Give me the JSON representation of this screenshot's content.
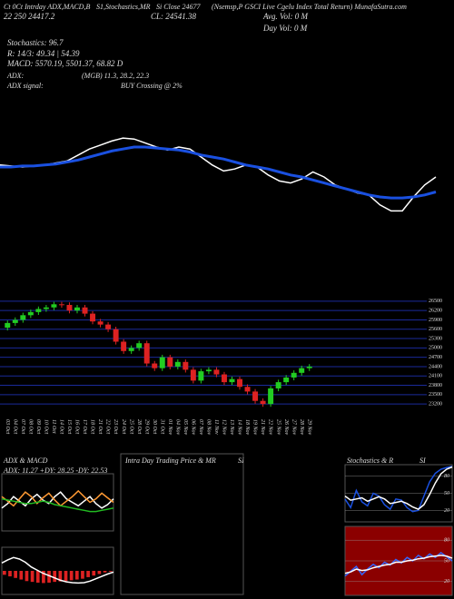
{
  "header": {
    "l1a": "Ct 0Ct Intrday ADX,MACD,B",
    "l1b": "S1,Stochastics,MR",
    "l1c": "Si Close 24677",
    "l1d": "(Nsemsp,P GSCI Live Cgelu Index Total Return) MunafaSutra.com",
    "l2a": "22 250 24417.2",
    "l2b": "CL: 24541.38",
    "l2c": "Avg. Vol: 0 M",
    "l2d": "Day Vol: 0 M",
    "stoch": "Stochastics: 96.7",
    "r": "R: 14/3: 49.34 | 54.39",
    "macd": "MACD: 5570.19, 5501.37, 68.82 D",
    "adx": "ADX:",
    "adx_vals": "(MGB) 11.3, 28.2, 22.3",
    "adx_signal": "ADX signal:",
    "signal": "BUY Crossing @ 2%",
    "p_adx": "ADX & MACD",
    "p_adx_sub": "ADX: 11.27 +DY: 28.25 -DY: 22.53",
    "p_intra": "Intra Day Trading Price & MR",
    "p_intra_si": "SI",
    "p_stoch": "Stochastics & R",
    "p_stoch_si": "SI"
  },
  "chart_data": [
    {
      "type": "line",
      "ylim": [
        0,
        100
      ],
      "series": [
        {
          "name": "Price",
          "color": "#ffffff",
          "values": [
            62,
            61,
            60,
            61,
            62,
            64,
            66,
            72,
            78,
            82,
            86,
            89,
            88,
            84,
            80,
            77,
            80,
            78,
            70,
            62,
            56,
            58,
            62,
            60,
            52,
            46,
            44,
            48,
            55,
            50,
            42,
            38,
            34,
            32,
            22,
            16,
            16,
            30,
            42,
            50
          ]
        },
        {
          "name": "Average",
          "color": "#1a50e0",
          "values": [
            60,
            60,
            61,
            61,
            62,
            63,
            65,
            67,
            70,
            73,
            76,
            78,
            80,
            80,
            79,
            78,
            77,
            75,
            72,
            70,
            68,
            65,
            62,
            60,
            58,
            55,
            52,
            50,
            47,
            44,
            41,
            38,
            35,
            32,
            30,
            29,
            29,
            30,
            32,
            35
          ]
        }
      ]
    },
    {
      "type": "candlestick",
      "ylim": [
        23000,
        26700
      ],
      "yticks": [
        23200,
        23500,
        23800,
        24100,
        24400,
        24700,
        25000,
        25300,
        25600,
        25900,
        26200,
        26500
      ],
      "up_color": "#22cc22",
      "down_color": "#dd2222",
      "grid_color": "#1a2a9a",
      "categories": [
        "03 Oct",
        "04 Oct",
        "07 Oct",
        "08 Oct",
        "09 Oct",
        "10 Oct",
        "11 Oct",
        "14 Oct",
        "15 Oct",
        "16 Oct",
        "17 Oct",
        "18 Oct",
        "21 Oct",
        "22 Oct",
        "23 Oct",
        "24 Oct",
        "25 Oct",
        "28 Oct",
        "29 Oct",
        "30 Oct",
        "31 Oct",
        "01 Nov",
        "04 Nov",
        "05 Nov",
        "06 Nov",
        "07 Nov",
        "08 Nov",
        "11 Nov",
        "12 Nov",
        "13 Nov",
        "14 Nov",
        "18 Nov",
        "19 Nov",
        "21 Nov",
        "22 Nov",
        "25 Nov",
        "26 Nov",
        "27 Nov",
        "28 Nov",
        "29 Nov"
      ],
      "open": [
        25650,
        25800,
        25900,
        26050,
        26150,
        26250,
        26300,
        26400,
        26380,
        26200,
        26300,
        26100,
        25850,
        25750,
        25600,
        25200,
        24900,
        25000,
        25150,
        24500,
        24350,
        24700,
        24400,
        24550,
        24300,
        23950,
        24250,
        24300,
        24150,
        23900,
        24000,
        23750,
        23600,
        23300,
        23200,
        23700,
        23900,
        24050,
        24200,
        24350
      ],
      "high": [
        25880,
        25980,
        26130,
        26230,
        26330,
        26380,
        26480,
        26480,
        26460,
        26380,
        26380,
        26180,
        25930,
        25830,
        25680,
        25280,
        25080,
        25230,
        25230,
        24580,
        24780,
        24780,
        24630,
        24630,
        24380,
        24330,
        24380,
        24380,
        24230,
        24080,
        24080,
        23830,
        23680,
        23380,
        23780,
        23980,
        24130,
        24280,
        24430,
        24480
      ],
      "low": [
        25560,
        25710,
        25810,
        25960,
        26060,
        26160,
        26210,
        26290,
        26110,
        26110,
        26010,
        25760,
        25660,
        25510,
        25110,
        24810,
        24810,
        24910,
        24410,
        24260,
        24260,
        24310,
        24310,
        24210,
        23860,
        23860,
        24160,
        24060,
        23810,
        23810,
        23660,
        23510,
        23210,
        23110,
        23110,
        23610,
        23810,
        23960,
        24110,
        24260
      ],
      "close": [
        25800,
        25900,
        26050,
        26150,
        26250,
        26300,
        26400,
        26380,
        26200,
        26300,
        26100,
        25850,
        25750,
        25600,
        25200,
        24900,
        25000,
        25150,
        24500,
        24350,
        24700,
        24400,
        24550,
        24300,
        23950,
        24250,
        24300,
        24150,
        23900,
        24000,
        23750,
        23600,
        23300,
        23200,
        23700,
        23900,
        24050,
        24200,
        24350,
        24400
      ]
    },
    {
      "type": "line",
      "ylim": [
        0,
        50
      ],
      "series": [
        {
          "name": "+DY",
          "color": "#ffffff",
          "values": [
            20,
            24,
            30,
            26,
            22,
            28,
            32,
            27,
            24,
            30,
            34,
            28,
            25,
            22,
            26,
            30,
            24,
            20,
            23,
            28
          ]
        },
        {
          "name": "-DY",
          "color": "#ff9933",
          "values": [
            30,
            26,
            22,
            28,
            34,
            30,
            24,
            29,
            33,
            27,
            22,
            26,
            30,
            35,
            30,
            25,
            28,
            33,
            29,
            25
          ]
        },
        {
          "name": "ADX",
          "color": "#22bb22",
          "values": [
            28,
            27,
            26,
            25,
            24,
            24,
            25,
            26,
            25,
            23,
            22,
            21,
            20,
            19,
            18,
            17,
            17,
            18,
            19,
            20
          ]
        }
      ]
    },
    {
      "type": "bar",
      "ylim": [
        -60,
        60
      ],
      "color": "#dd2222",
      "values": [
        -10,
        -14,
        -18,
        -22,
        -26,
        -28,
        -30,
        -31,
        -30,
        -28,
        -27,
        -26,
        -24,
        -22,
        -20,
        -16,
        -12,
        -8,
        -4,
        -2
      ],
      "series": [
        {
          "name": "MACD",
          "color": "#ffffff",
          "values": [
            20,
            28,
            34,
            30,
            22,
            10,
            2,
            -6,
            -12,
            -18,
            -24,
            -28,
            -30,
            -31,
            -30,
            -26,
            -20,
            -14,
            -8,
            -3
          ]
        }
      ]
    },
    {
      "type": "line",
      "ylim": [
        0,
        100
      ],
      "yticks": [
        20,
        50,
        80
      ],
      "bg": "#000000",
      "series": [
        {
          "name": "%K",
          "color": "#1a50e0",
          "values": [
            40,
            25,
            55,
            35,
            28,
            50,
            45,
            30,
            22,
            40,
            38,
            25,
            18,
            20,
            45,
            70,
            85,
            92,
            95,
            97
          ]
        },
        {
          "name": "%D",
          "color": "#ffffff",
          "values": [
            45,
            38,
            40,
            42,
            36,
            40,
            44,
            40,
            32,
            34,
            36,
            32,
            26,
            22,
            30,
            48,
            68,
            84,
            92,
            96
          ]
        }
      ]
    },
    {
      "type": "line",
      "ylim": [
        0,
        100
      ],
      "yticks": [
        20,
        50,
        80
      ],
      "bg": "#8b0000",
      "series": [
        {
          "name": "R",
          "color": "#3366ff",
          "values": [
            28,
            35,
            42,
            30,
            38,
            45,
            40,
            48,
            44,
            52,
            47,
            55,
            50,
            58,
            53,
            60,
            55,
            62,
            56,
            50
          ]
        },
        {
          "name": "Signal",
          "color": "#ffffff",
          "values": [
            32,
            34,
            38,
            36,
            37,
            40,
            42,
            44,
            45,
            48,
            48,
            50,
            51,
            53,
            54,
            56,
            57,
            58,
            57,
            54
          ]
        }
      ]
    }
  ]
}
